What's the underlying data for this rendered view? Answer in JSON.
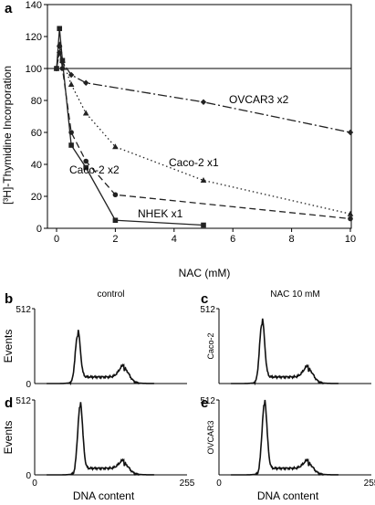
{
  "panel_a": {
    "label": "a",
    "chart_data": {
      "type": "line",
      "xlabel": "NAC (mM)",
      "ylabel": "[³H]-Thymidine Incorporation",
      "xlim": [
        -0.3,
        10
      ],
      "ylim": [
        0,
        140
      ],
      "xticks": [
        0,
        2,
        4,
        6,
        8,
        10
      ],
      "yticks": [
        0,
        20,
        40,
        60,
        80,
        100,
        120,
        140
      ],
      "reference_line": 100,
      "grid": false,
      "series": [
        {
          "name": "OVCAR3 x2",
          "marker": "diamond",
          "dash": "10,3,2,3",
          "x": [
            0,
            0.1,
            0.2,
            0.5,
            1,
            5,
            10
          ],
          "y": [
            100,
            110,
            104,
            96,
            91,
            79,
            60
          ]
        },
        {
          "name": "Caco-2 x1",
          "marker": "triangle",
          "dash": "1.5,3",
          "x": [
            0,
            0.1,
            0.2,
            0.5,
            1,
            2,
            5,
            10
          ],
          "y": [
            100,
            115,
            105,
            90,
            72,
            51,
            30,
            9
          ]
        },
        {
          "name": "Caco-2 x2",
          "marker": "circle",
          "dash": "7,4",
          "x": [
            0,
            0.1,
            0.2,
            0.5,
            1,
            2,
            10
          ],
          "y": [
            100,
            114,
            100,
            60,
            42,
            21,
            6
          ]
        },
        {
          "name": "NHEK x1",
          "marker": "square",
          "dash": "",
          "x": [
            0,
            0.1,
            0.2,
            0.5,
            1,
            2,
            5
          ],
          "y": [
            100,
            125,
            105,
            52,
            38,
            5,
            2
          ]
        }
      ]
    }
  },
  "histograms": {
    "xlabel": "DNA content",
    "ylabel": "Events",
    "x_min": "0",
    "x_max": "255",
    "y_max": "512",
    "y_min": "0",
    "panels": [
      {
        "label": "b",
        "title": "control",
        "side_label": "",
        "chart_data": {
          "type": "area",
          "x": [
            0,
            255
          ],
          "ylim": [
            0,
            512
          ],
          "g1_channel": 72,
          "g1_peak": 330,
          "g2_channel": 150,
          "g2_peak": 85
        }
      },
      {
        "label": "c",
        "title": "NAC 10 mM",
        "side_label": "Caco-2",
        "chart_data": {
          "type": "area",
          "x": [
            0,
            255
          ],
          "ylim": [
            0,
            512
          ],
          "g1_channel": 72,
          "g1_peak": 410,
          "g2_channel": 150,
          "g2_peak": 80
        }
      },
      {
        "label": "d",
        "title": "",
        "side_label": "",
        "chart_data": {
          "type": "area",
          "x": [
            0,
            255
          ],
          "ylim": [
            0,
            512
          ],
          "g1_channel": 76,
          "g1_peak": 465,
          "g2_channel": 150,
          "g2_peak": 60
        }
      },
      {
        "label": "e",
        "title": "",
        "side_label": "OVCAR3",
        "chart_data": {
          "type": "area",
          "x": [
            0,
            255
          ],
          "ylim": [
            0,
            512
          ],
          "g1_channel": 76,
          "g1_peak": 480,
          "g2_channel": 150,
          "g2_peak": 60
        }
      }
    ]
  }
}
